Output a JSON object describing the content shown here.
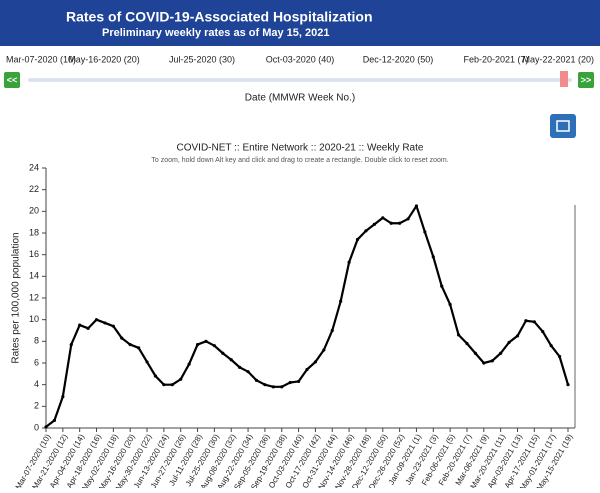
{
  "header": {
    "title": "Rates of COVID-19-Associated Hospitalization",
    "subtitle": "Preliminary weekly rates as of May 15, 2021"
  },
  "slider": {
    "labels": [
      "Mar-07-2020 (10)",
      "May-16-2020 (20)",
      "Jul-25-2020 (30)",
      "Oct-03-2020 (40)",
      "Dec-12-2020 (50)",
      "Feb-20-2021 (7)",
      "May-22-2021 (20)"
    ],
    "prev": "<<",
    "next": ">>",
    "caption": "Date (MMWR Week No.)"
  },
  "chart_data": {
    "type": "line",
    "title": "COVID-NET :: Entire Network :: 2020-21 :: Weekly Rate",
    "subtitle": "To zoom, hold down Alt key and click and drag to create a rectangle. Double click to reset zoom.",
    "y_label": "Rates per 100,000 population",
    "categories": [
      "Mar-07-2020 (10)",
      null,
      "Mar-21-2020 (12)",
      null,
      "Apr-04-2020 (14)",
      null,
      "Apr-18-2020 (16)",
      null,
      "May-02-2020 (18)",
      null,
      "May-16-2020 (20)",
      null,
      "May-30-2020 (22)",
      null,
      "Jun-13-2020 (24)",
      null,
      "Jun-27-2020 (26)",
      null,
      "Jul-11-2020 (28)",
      null,
      "Jul-25-2020 (30)",
      null,
      "Aug-08-2020 (32)",
      null,
      "Aug-22-2020 (34)",
      null,
      "Sep-05-2020 (36)",
      null,
      "Sep-19-2020 (38)",
      null,
      "Oct-03-2020 (40)",
      null,
      "Oct-17-2020 (42)",
      null,
      "Oct-31-2020 (44)",
      null,
      "Nov-14-2020 (46)",
      null,
      "Nov-28-2020 (48)",
      null,
      "Dec-12-2020 (50)",
      null,
      "Dec-26-2020 (52)",
      null,
      "Jan-09-2021 (1)",
      null,
      "Jan-23-2021 (3)",
      null,
      "Feb-06-2021 (5)",
      null,
      "Feb-20-2021 (7)",
      null,
      "Mar-06-2021 (9)",
      null,
      "Mar-20-2021 (11)",
      null,
      "Apr-03-2021 (13)",
      null,
      "Apr-17-2021 (15)",
      null,
      "May-01-2021 (17)",
      null,
      "May-15-2021 (19)"
    ],
    "values": [
      0.1,
      0.7,
      2.9,
      7.7,
      9.5,
      9.2,
      10.0,
      9.7,
      9.4,
      8.3,
      7.7,
      7.4,
      6.1,
      4.8,
      4.0,
      4.0,
      4.5,
      5.9,
      7.7,
      8.0,
      7.6,
      6.9,
      6.3,
      5.6,
      5.2,
      4.4,
      4.0,
      3.8,
      3.8,
      4.2,
      4.3,
      5.4,
      6.1,
      7.2,
      9.0,
      11.7,
      15.3,
      17.4,
      18.2,
      18.8,
      19.4,
      18.9,
      18.9,
      19.3,
      20.5,
      18.1,
      15.8,
      13.1,
      11.4,
      8.6,
      7.8,
      6.9,
      6.0,
      6.2,
      6.9,
      7.9,
      8.5,
      9.9,
      9.8,
      8.9,
      7.6,
      6.6,
      4.0
    ],
    "color": "#000000",
    "ylim": [
      0,
      24
    ],
    "yticks": [
      0,
      2,
      4,
      6,
      8,
      10,
      12,
      14,
      16,
      18,
      20,
      22,
      24
    ],
    "grid": false
  }
}
